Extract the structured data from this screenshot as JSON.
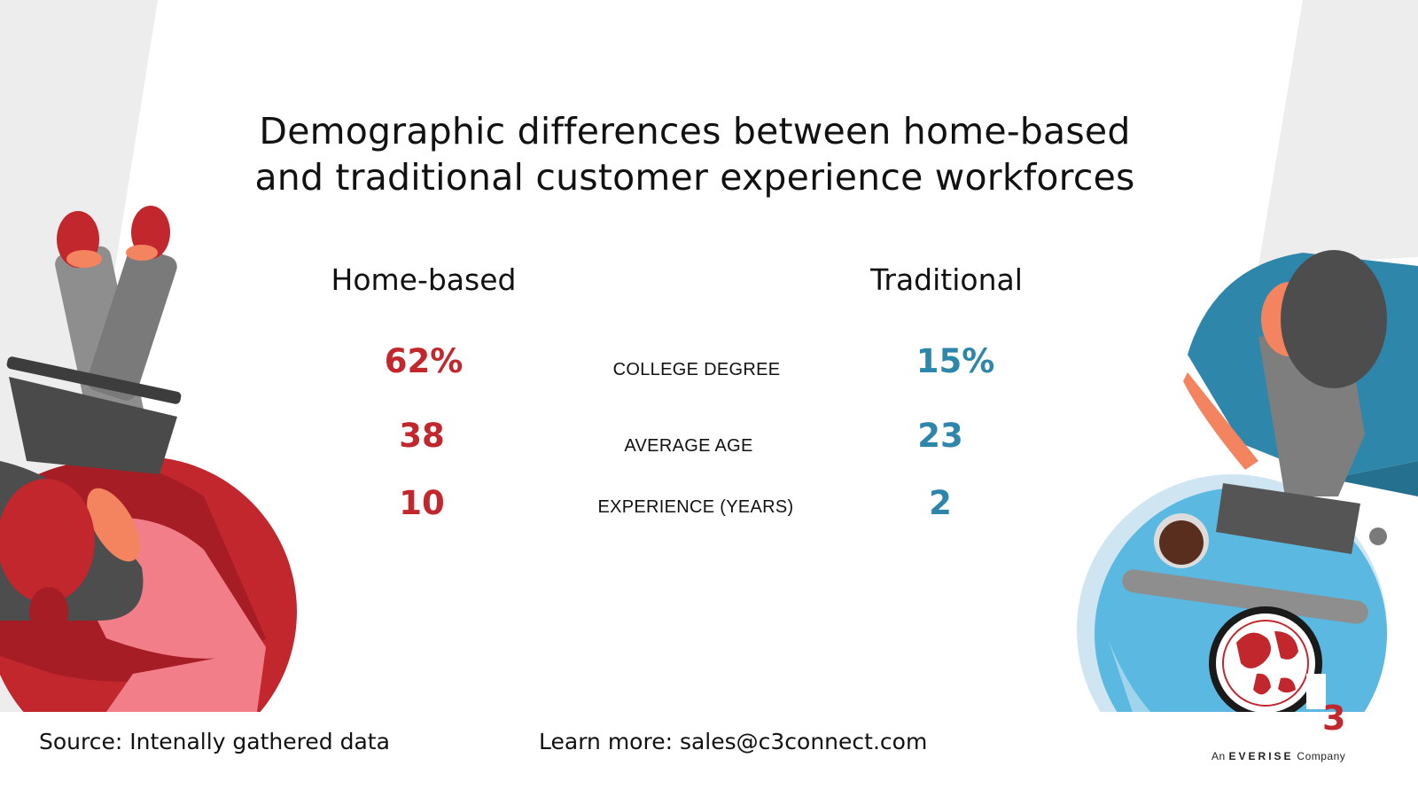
{
  "title_line1": "Demographic differences between home-based",
  "title_line2": "and traditional customer experience workforces",
  "columns": {
    "home": "Home-based",
    "traditional": "Traditional"
  },
  "rows": [
    {
      "home": "62%",
      "metric": "COLLEGE DEGREE",
      "traditional": "15%"
    },
    {
      "home": "38",
      "metric": "AVERAGE AGE",
      "traditional": "23"
    },
    {
      "home": "10",
      "metric": "EXPERIENCE (YEARS)",
      "traditional": "2"
    }
  ],
  "footer": {
    "source": "Source: Intenally gathered data",
    "learn_more": "Learn more: sales@c3connect.com"
  },
  "logo": {
    "mark": "C3",
    "tag_prefix": "An",
    "tag_brand": "EVERISE",
    "tag_suffix": "Company"
  },
  "colors": {
    "home_accent": "#c1272d",
    "traditional_accent": "#2e86ab",
    "band_gray": "#ededed",
    "beanbag_red": "#c1272d",
    "ball_blue": "#5bb8e0",
    "shirt_blue": "#2e86ab"
  },
  "icons": [
    "person-on-beanbag-illustration",
    "person-on-ball-illustration",
    "c3-globe-logo"
  ]
}
